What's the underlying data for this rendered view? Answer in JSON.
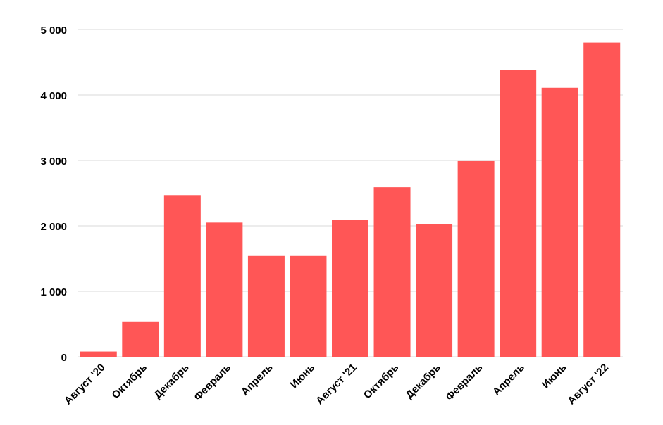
{
  "colors": {
    "bar": "#ff5656",
    "grid": "#d9d9d9",
    "text": "#000000",
    "background": "#ffffff"
  },
  "chart_data": {
    "type": "bar",
    "title": "",
    "xlabel": "",
    "ylabel": "",
    "grid": true,
    "legend": "none",
    "ylim": [
      0,
      5000
    ],
    "yticks": [
      0,
      1000,
      2000,
      3000,
      4000,
      5000
    ],
    "ytick_labels": [
      "0",
      "1 000",
      "2 000",
      "3 000",
      "4 000",
      "5 000"
    ],
    "categories": [
      "Август '20",
      "Октябрь",
      "Декабрь",
      "Февраль",
      "Апрель",
      "Июнь",
      "Август '21",
      "Октябрь",
      "Декабрь",
      "Февраль",
      "Апрель",
      "Июнь",
      "Август '22"
    ],
    "values": [
      80,
      540,
      2470,
      2050,
      1540,
      1540,
      2090,
      2590,
      2030,
      2990,
      4380,
      4110,
      4800
    ]
  }
}
